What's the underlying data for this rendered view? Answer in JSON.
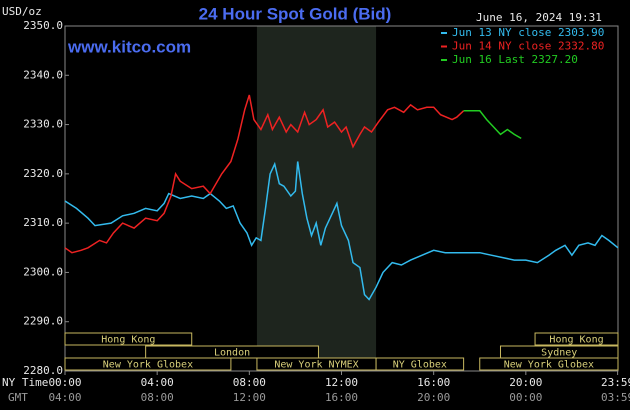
{
  "chart_data": {
    "type": "line",
    "title": "24 Hour Spot Gold (Bid)",
    "timestamp": "June 16, 2024 19:31",
    "unit_label": "USD/oz",
    "watermark": "www.kitco.com",
    "x_label": "NY Time",
    "x2_label": "GMT",
    "xlim": [
      0,
      24
    ],
    "xticks": [
      {
        "value": 0,
        "label": "00:00"
      },
      {
        "value": 4,
        "label": "04:00"
      },
      {
        "value": 8,
        "label": "08:00"
      },
      {
        "value": 12,
        "label": "12:00"
      },
      {
        "value": 16,
        "label": "16:00"
      },
      {
        "value": 20,
        "label": "20:00"
      },
      {
        "value": 23.983,
        "label": "23:59"
      }
    ],
    "x2ticks": [
      {
        "value": 0,
        "label": "04:00"
      },
      {
        "value": 4,
        "label": "08:00"
      },
      {
        "value": 8,
        "label": "12:00"
      },
      {
        "value": 12,
        "label": "16:00"
      },
      {
        "value": 16,
        "label": "20:00"
      },
      {
        "value": 20,
        "label": "00:00"
      },
      {
        "value": 23.983,
        "label": "03:59"
      }
    ],
    "ylim": [
      2280,
      2350
    ],
    "yticks": [
      {
        "value": 2280,
        "label": "2280.0"
      },
      {
        "value": 2290,
        "label": "2290.0"
      },
      {
        "value": 2300,
        "label": "2300.0"
      },
      {
        "value": 2310,
        "label": "2310.0"
      },
      {
        "value": 2320,
        "label": "2320.0"
      },
      {
        "value": 2330,
        "label": "2330.0"
      },
      {
        "value": 2340,
        "label": "2340.0"
      },
      {
        "value": 2350,
        "label": "2350.0"
      }
    ],
    "grid": false,
    "highlight_range": [
      8.33,
      13.5
    ],
    "series": [
      {
        "name": "Jun 13 NY close",
        "legend_value": {
          "value": 2303.9,
          "label": "2303.90"
        },
        "color": "#33bbee",
        "x": [
          0,
          0.5,
          1,
          1.3,
          2,
          2.5,
          3,
          3.5,
          4,
          4.3,
          4.5,
          5,
          5.5,
          6,
          6.3,
          6.7,
          7,
          7.3,
          7.6,
          7.9,
          8.1,
          8.3,
          8.5,
          8.7,
          8.9,
          9.1,
          9.3,
          9.5,
          9.8,
          10,
          10.1,
          10.3,
          10.5,
          10.7,
          10.9,
          11.1,
          11.3,
          11.6,
          11.8,
          12,
          12.3,
          12.5,
          12.8,
          13,
          13.2,
          13.5,
          13.8,
          14.2,
          14.6,
          15,
          15.5,
          16,
          16.5,
          17,
          17.5,
          18,
          18.5,
          19,
          19.5,
          20,
          20.5,
          21,
          21.3,
          21.7,
          22,
          22.3,
          22.7,
          23,
          23.3,
          23.6,
          24
        ],
        "values": [
          2314.5,
          2313,
          2311,
          2309.5,
          2310,
          2311.5,
          2312,
          2313,
          2312.5,
          2314,
          2316,
          2315,
          2315.5,
          2315,
          2316,
          2314.5,
          2313,
          2313.5,
          2310,
          2308,
          2305.5,
          2307,
          2306.5,
          2313,
          2320,
          2322,
          2318,
          2317.5,
          2315.5,
          2316.5,
          2322.5,
          2316,
          2311,
          2307.5,
          2310,
          2305.5,
          2309,
          2312,
          2314,
          2309.5,
          2306.5,
          2302,
          2301,
          2295.5,
          2294.5,
          2297,
          2300,
          2302,
          2301.5,
          2302.5,
          2303.5,
          2304.5,
          2304,
          2304,
          2304,
          2304,
          2303.5,
          2303,
          2302.5,
          2302.5,
          2302,
          2303.5,
          2304.5,
          2305.5,
          2303.5,
          2305.5,
          2306,
          2305.5,
          2307.5,
          2306.5,
          2305
        ]
      },
      {
        "name": "Jun 14 NY close",
        "legend_value": {
          "value": 2332.8,
          "label": "2332.80"
        },
        "color": "#ee2222",
        "x": [
          0,
          0.3,
          0.7,
          1,
          1.5,
          1.8,
          2.1,
          2.5,
          3,
          3.5,
          4,
          4.3,
          4.6,
          4.8,
          5,
          5.5,
          6,
          6.3,
          6.8,
          7.2,
          7.5,
          7.8,
          8,
          8.2,
          8.5,
          8.8,
          9,
          9.3,
          9.6,
          9.8,
          10.1,
          10.4,
          10.6,
          10.9,
          11.2,
          11.4,
          11.7,
          12,
          12.2,
          12.5,
          12.8,
          13,
          13.3,
          13.6,
          14,
          14.3,
          14.7,
          15,
          15.3,
          15.7,
          16,
          16.3,
          16.8,
          17,
          17.3
        ],
        "values": [
          2305,
          2304,
          2304.5,
          2305,
          2306.5,
          2306,
          2308,
          2310,
          2309,
          2311,
          2310.5,
          2312,
          2315.5,
          2320,
          2318.5,
          2317,
          2317.5,
          2316,
          2320,
          2322.5,
          2327,
          2333,
          2336,
          2331,
          2329,
          2332,
          2329,
          2331.5,
          2328.5,
          2330,
          2328.5,
          2332.5,
          2330,
          2331,
          2333,
          2329.5,
          2330.5,
          2328.5,
          2329.5,
          2325.5,
          2328,
          2329.5,
          2328.5,
          2330.5,
          2333,
          2333.5,
          2332.5,
          2334,
          2333,
          2333.5,
          2333.5,
          2332,
          2331,
          2331.5,
          2332.8
        ]
      },
      {
        "name": "Jun 16 Last",
        "legend_value": {
          "value": 2327.2,
          "label": "2327.20"
        },
        "color": "#22cc22",
        "x": [
          17.3,
          18,
          18.3,
          18.6,
          18.9,
          19.2,
          19.5,
          19.8
        ],
        "values": [
          2332.8,
          2332.8,
          2331,
          2329.5,
          2328,
          2329,
          2328,
          2327.2
        ]
      }
    ],
    "session_rows": [
      [
        {
          "label": "Hong Kong",
          "start": 0,
          "end": 5.5
        },
        {
          "label": "Hong Kong",
          "start": 20.4,
          "end": 24
        }
      ],
      [
        {
          "label": "London",
          "start": 3.5,
          "end": 11
        },
        {
          "label": "Sydney",
          "start": 18.9,
          "end": 24
        }
      ],
      [
        {
          "label": "New York Globex",
          "start": 0,
          "end": 7.2
        },
        {
          "label": "New York NYMEX",
          "start": 8.33,
          "end": 13.5
        },
        {
          "label": "NY Globex",
          "start": 13.5,
          "end": 17.3
        },
        {
          "label": "New York Globex",
          "start": 18,
          "end": 24
        }
      ]
    ]
  }
}
